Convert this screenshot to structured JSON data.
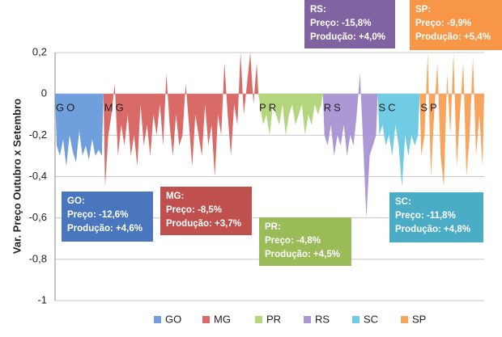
{
  "chart_data": {
    "type": "area",
    "y_label": "Var. Preço Outubro x Setembro",
    "ylim": [
      -1,
      0.2
    ],
    "yticks": [
      {
        "value": -1,
        "label": "-1"
      },
      {
        "value": -0.8,
        "label": "-0,8"
      },
      {
        "value": -0.6,
        "label": "-0,6"
      },
      {
        "value": -0.4,
        "label": "-0,4"
      },
      {
        "value": -0.2,
        "label": "-0,2"
      },
      0,
      {
        "value": 0.2,
        "label": "0,2"
      }
    ],
    "grid": true,
    "legend": "bottom",
    "series": [
      {
        "name": "GO",
        "color": "#6f9fdc",
        "values": [
          -0.25,
          -0.3,
          -0.22,
          -0.35,
          -0.2,
          -0.28,
          -0.33,
          -0.18,
          -0.3,
          -0.25,
          -0.32,
          -0.22,
          -0.3,
          -0.27,
          -0.3
        ]
      },
      {
        "name": "MG",
        "color": "#d96a67",
        "values": [
          -0.45,
          -0.2,
          -0.1,
          0.05,
          -0.3,
          -0.15,
          -0.25,
          -0.1,
          -0.3,
          -0.2,
          -0.35,
          -0.05,
          -0.25,
          -0.15,
          -0.3,
          -0.1,
          -0.2,
          -0.05,
          -0.25,
          0.1,
          -0.15,
          -0.3,
          -0.1,
          -0.25,
          -0.2,
          0.05,
          -0.15,
          -0.35,
          -0.1,
          -0.2,
          -0.3,
          -0.05,
          -0.25,
          -0.15,
          -0.4,
          -0.1,
          -0.2,
          0.15,
          -0.1,
          -0.3,
          -0.05,
          -0.15,
          0.2,
          -0.1,
          0.05,
          0.2,
          -0.05,
          0.15
        ]
      },
      {
        "name": "PR",
        "color": "#b3d57c",
        "values": [
          -0.05,
          -0.15,
          -0.1,
          -0.2,
          -0.05,
          -0.1,
          -0.15,
          -0.05,
          -0.2,
          -0.1,
          -0.05,
          -0.15,
          -0.1,
          -0.05,
          -0.2,
          -0.1,
          -0.15,
          -0.05,
          -0.1,
          -0.05
        ]
      },
      {
        "name": "RS",
        "color": "#ad98d6",
        "values": [
          -0.2,
          -0.25,
          -0.15,
          -0.3,
          -0.2,
          -0.25,
          -0.15,
          -0.3,
          -0.2,
          -0.25,
          -0.1,
          0.1,
          -0.25,
          -0.6,
          -0.3,
          -0.25,
          -0.2
        ]
      },
      {
        "name": "SC",
        "color": "#6fcce4",
        "values": [
          -0.2,
          -0.15,
          -0.25,
          -0.2,
          -0.3,
          -0.15,
          -0.25,
          -0.45,
          -0.2,
          -0.3,
          -0.2,
          -0.25,
          -0.2
        ]
      },
      {
        "name": "SP",
        "color": "#f9a45c",
        "values": [
          -0.3,
          -0.2,
          0.2,
          -0.4,
          -0.1,
          0.15,
          -0.3,
          -0.45,
          0.1,
          -0.2,
          0.2,
          -0.35,
          -0.1,
          0.15,
          -0.4,
          -0.2,
          0.18,
          -0.3,
          -0.1,
          -0.35
        ]
      }
    ],
    "annotations": [
      {
        "color": "#4a76bd",
        "lines": [
          "GO:",
          "Preço: -12,6%",
          "Produção: +4,6%"
        ]
      },
      {
        "color": "#c0504d",
        "lines": [
          "MG:",
          "Preço: -8,5%",
          "Produção: +3,7%"
        ]
      },
      {
        "color": "#9bbb59",
        "lines": [
          "PR:",
          "Preço: -4,8%",
          "Produção: +4,5%"
        ]
      },
      {
        "color": "#8064a2",
        "lines": [
          "RS:",
          "Preço: -15,8%",
          "Produção: +4,0%"
        ]
      },
      {
        "color": "#4bacc6",
        "lines": [
          "SC:",
          "Preço: -11,8%",
          "Produção: +4,8%"
        ]
      },
      {
        "color": "#f79646",
        "lines": [
          "SP:",
          "Preço: -9,9%",
          "Produção: +5,4%"
        ]
      }
    ]
  }
}
